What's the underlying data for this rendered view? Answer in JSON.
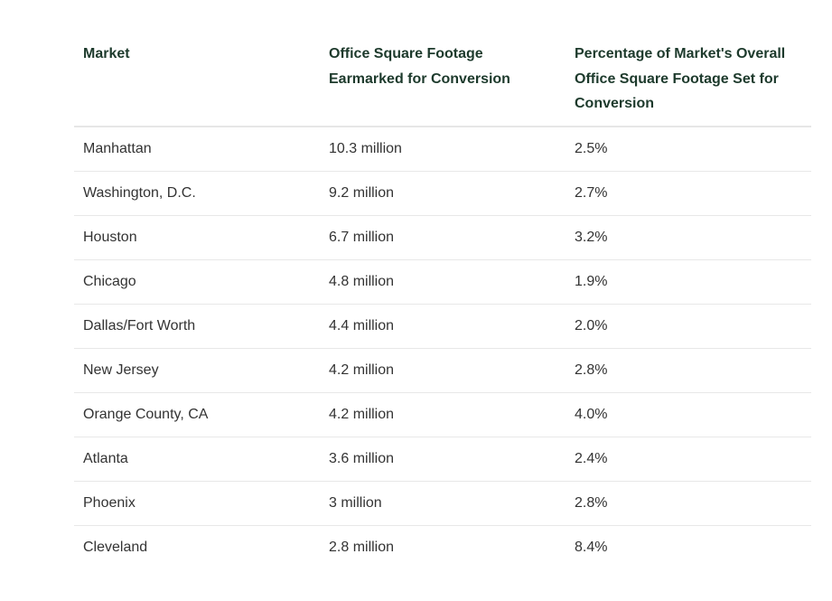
{
  "table": {
    "headers": [
      "Market",
      "Office Square Footage Earmarked for Conversion",
      "Percentage of Market's Overall Office Square Footage Set for Conversion"
    ],
    "rows": [
      [
        "Manhattan",
        "10.3 million",
        "2.5%"
      ],
      [
        "Washington, D.C.",
        "9.2 million",
        "2.7%"
      ],
      [
        "Houston",
        "6.7 million",
        "3.2%"
      ],
      [
        "Chicago",
        "4.8 million",
        "1.9%"
      ],
      [
        "Dallas/Fort Worth",
        "4.4 million",
        "2.0%"
      ],
      [
        "New Jersey",
        "4.2 million",
        "2.8%"
      ],
      [
        "Orange County, CA",
        "4.2 million",
        "4.0%"
      ],
      [
        "Atlanta",
        "3.6 million",
        "2.4%"
      ],
      [
        "Phoenix",
        "3 million",
        "2.8%"
      ],
      [
        "Cleveland",
        "2.8 million",
        "8.4%"
      ]
    ]
  },
  "colors": {
    "header_text": "#1d3a2c",
    "body_text": "#333333"
  }
}
